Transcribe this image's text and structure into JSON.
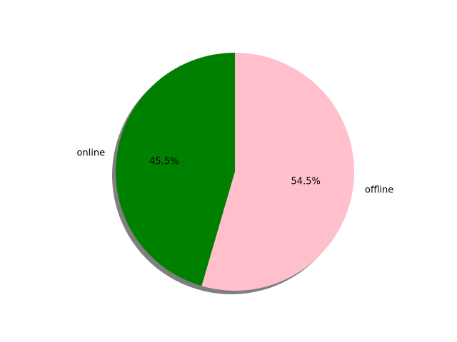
{
  "chart_data": {
    "type": "pie",
    "title": "",
    "labels": [
      "online",
      "offline"
    ],
    "values": [
      45.5,
      54.5
    ],
    "percent_labels": [
      "45.5%",
      "54.5%"
    ],
    "colors": [
      "#008000",
      "#ffc0cb"
    ],
    "start_angle_deg": 90,
    "direction": "counterclockwise",
    "shadow": true,
    "legend": "none"
  }
}
